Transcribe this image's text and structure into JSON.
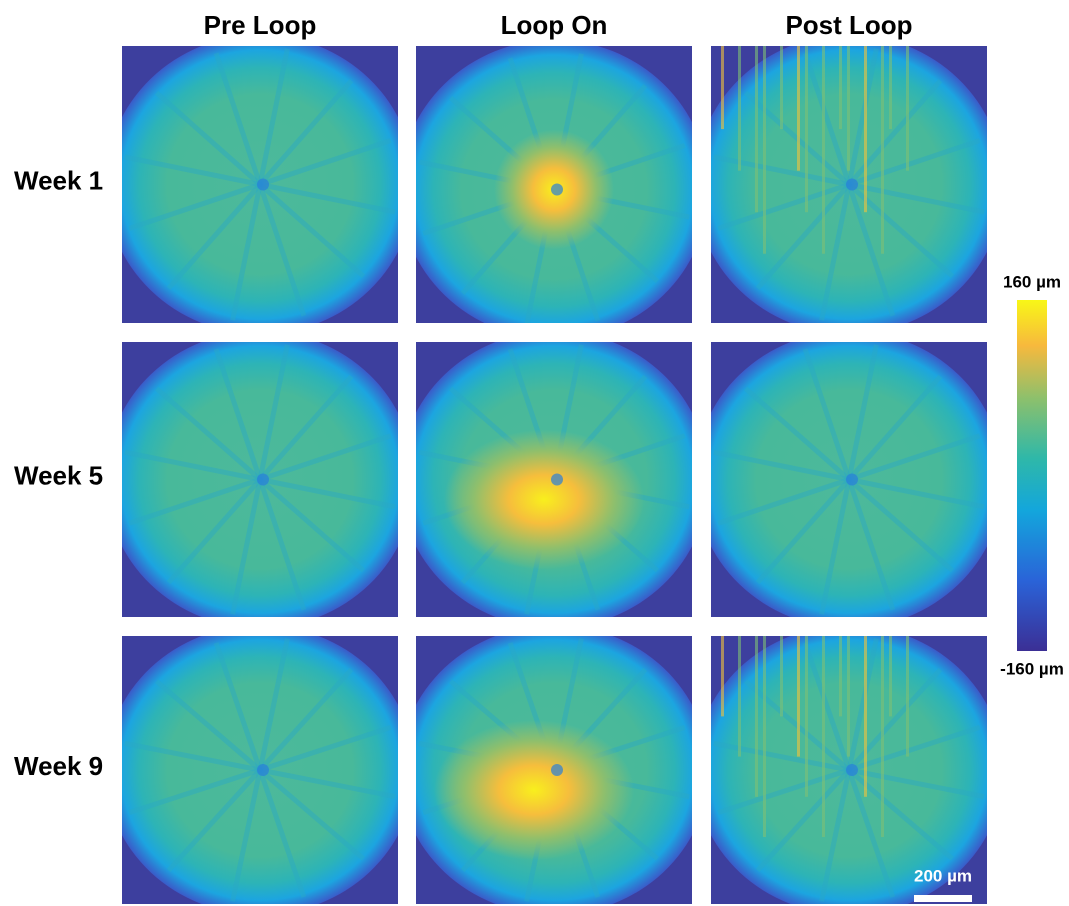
{
  "columns": [
    "Pre Loop",
    "Loop On",
    "Post Loop"
  ],
  "rows": [
    "Week 1",
    "Week 5",
    "Week 9"
  ],
  "colorbar": {
    "max_label": "160 µm",
    "min_label": "-160 µm"
  },
  "scale_bar": "200 µm"
}
